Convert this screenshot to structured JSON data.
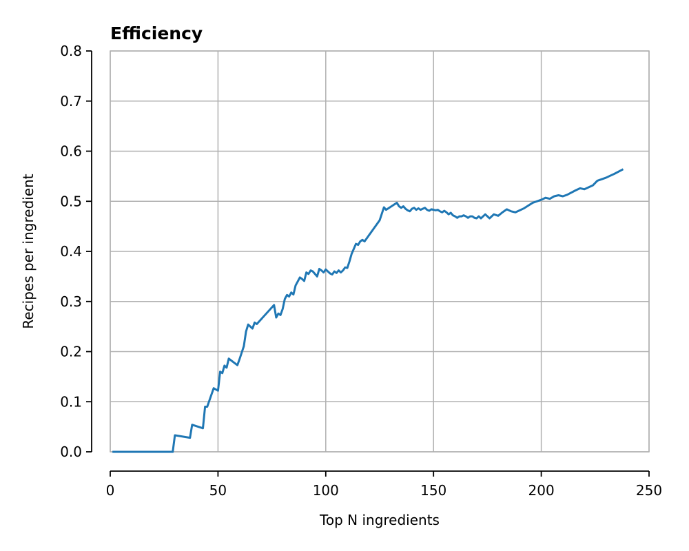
{
  "chart_data": {
    "type": "line",
    "title": "Efficiency",
    "xlabel": "Top N ingredients",
    "ylabel": "Recipes per ingredient",
    "xlim": [
      0,
      250
    ],
    "ylim": [
      0,
      0.8
    ],
    "x_ticks": [
      0,
      50,
      100,
      150,
      200,
      250
    ],
    "x_tick_labels": [
      "0",
      "50",
      "100",
      "150",
      "200",
      "250"
    ],
    "y_ticks": [
      0,
      0.1,
      0.2,
      0.3,
      0.4,
      0.5,
      0.6,
      0.7,
      0.8
    ],
    "y_tick_labels": [
      "0.0",
      "0.1",
      "0.2",
      "0.3",
      "0.4",
      "0.5",
      "0.6",
      "0.7",
      "0.8"
    ],
    "grid": true,
    "legend": "none",
    "colors": {
      "line": "#1f77b4",
      "grid": "#b0b0b0",
      "axis": "#000000"
    },
    "series": [
      {
        "x": [
          1,
          29,
          30,
          37,
          38,
          43,
          44,
          45,
          48,
          50,
          51,
          52,
          53,
          54,
          55,
          59,
          60,
          61,
          62,
          63,
          64,
          65,
          66,
          67,
          68,
          76,
          77,
          78,
          79,
          80,
          81,
          82,
          83,
          84,
          85,
          86,
          87,
          88,
          89,
          90,
          91,
          92,
          93,
          94,
          95,
          96,
          97,
          98,
          99,
          100,
          101,
          102,
          103,
          104,
          105,
          106,
          107,
          108,
          109,
          110,
          111,
          112,
          113,
          114,
          115,
          116,
          117,
          118,
          125,
          126,
          127,
          128,
          133,
          134,
          135,
          136,
          137,
          138,
          139,
          140,
          141,
          142,
          143,
          144,
          145,
          146,
          147,
          148,
          149,
          150,
          151,
          152,
          153,
          154,
          155,
          156,
          157,
          158,
          159,
          160,
          161,
          162,
          163,
          164,
          165,
          166,
          167,
          168,
          169,
          170,
          171,
          172,
          174,
          176,
          178,
          180,
          182,
          184,
          186,
          188,
          190,
          192,
          196,
          200,
          202,
          204,
          206,
          208,
          210,
          212,
          216,
          218,
          220,
          224,
          226,
          230,
          234,
          238
        ],
        "y": [
          0.0,
          0.0,
          0.033,
          0.028,
          0.054,
          0.047,
          0.09,
          0.09,
          0.127,
          0.122,
          0.16,
          0.157,
          0.172,
          0.168,
          0.186,
          0.173,
          0.185,
          0.198,
          0.211,
          0.24,
          0.254,
          0.25,
          0.246,
          0.258,
          0.255,
          0.293,
          0.268,
          0.276,
          0.273,
          0.285,
          0.305,
          0.313,
          0.31,
          0.318,
          0.314,
          0.332,
          0.34,
          0.348,
          0.345,
          0.341,
          0.358,
          0.355,
          0.362,
          0.36,
          0.355,
          0.35,
          0.365,
          0.362,
          0.358,
          0.364,
          0.36,
          0.356,
          0.354,
          0.36,
          0.357,
          0.362,
          0.358,
          0.362,
          0.368,
          0.367,
          0.38,
          0.395,
          0.405,
          0.415,
          0.413,
          0.42,
          0.423,
          0.42,
          0.462,
          0.475,
          0.488,
          0.483,
          0.497,
          0.49,
          0.487,
          0.49,
          0.485,
          0.482,
          0.48,
          0.485,
          0.487,
          0.483,
          0.486,
          0.483,
          0.485,
          0.487,
          0.483,
          0.481,
          0.484,
          0.483,
          0.482,
          0.483,
          0.48,
          0.478,
          0.481,
          0.478,
          0.474,
          0.477,
          0.472,
          0.47,
          0.467,
          0.47,
          0.47,
          0.472,
          0.47,
          0.467,
          0.47,
          0.47,
          0.467,
          0.466,
          0.47,
          0.466,
          0.474,
          0.466,
          0.474,
          0.471,
          0.478,
          0.484,
          0.48,
          0.478,
          0.482,
          0.486,
          0.497,
          0.503,
          0.507,
          0.505,
          0.51,
          0.512,
          0.51,
          0.513,
          0.522,
          0.526,
          0.524,
          0.532,
          0.541,
          0.547,
          0.555,
          0.564
        ]
      }
    ]
  }
}
